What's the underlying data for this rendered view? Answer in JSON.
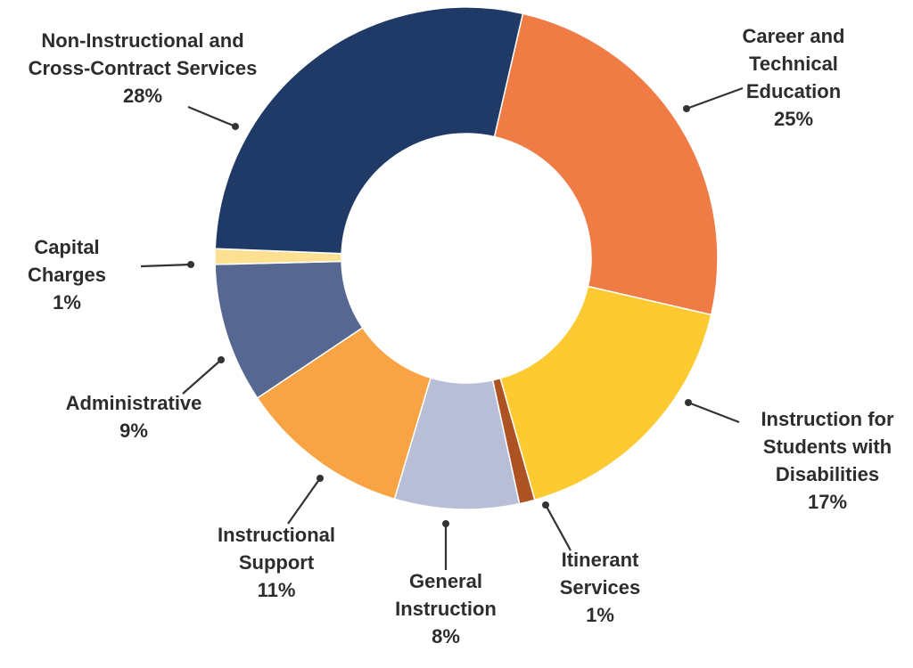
{
  "chart_data": {
    "type": "pie",
    "donut": true,
    "title": "",
    "start_slice": "Career and Technical Education",
    "direction": "clockwise",
    "slices": [
      {
        "name": "Career and Technical Education",
        "lines": [
          "Career and",
          "Technical",
          "Education"
        ],
        "value": 25,
        "pct_label": "25%",
        "color": "#ef7b45"
      },
      {
        "name": "Instruction for Students with Disabilities",
        "lines": [
          "Instruction for",
          "Students with",
          "Disabilities"
        ],
        "value": 17,
        "pct_label": "17%",
        "color": "#fdca31"
      },
      {
        "name": "Itinerant Services",
        "lines": [
          "Itinerant",
          "Services"
        ],
        "value": 1,
        "pct_label": "1%",
        "color": "#ad5323"
      },
      {
        "name": "General Instruction",
        "lines": [
          "General",
          "Instruction"
        ],
        "value": 8,
        "pct_label": "8%",
        "color": "#b7bed6"
      },
      {
        "name": "Instructional Support",
        "lines": [
          "Instructional",
          "Support"
        ],
        "value": 11,
        "pct_label": "11%",
        "color": "#f9a444"
      },
      {
        "name": "Administrative",
        "lines": [
          "Administrative"
        ],
        "value": 9,
        "pct_label": "9%",
        "color": "#566891"
      },
      {
        "name": "Capital Charges",
        "lines": [
          "Capital",
          "Charges"
        ],
        "value": 1,
        "pct_label": "1%",
        "color": "#fde091"
      },
      {
        "name": "Non-Instructional and Cross-Contract Services",
        "lines": [
          "Non-Instructional and",
          "Cross-Contract Services"
        ],
        "value": 28,
        "pct_label": "28%",
        "color": "#1f3a66"
      }
    ]
  }
}
